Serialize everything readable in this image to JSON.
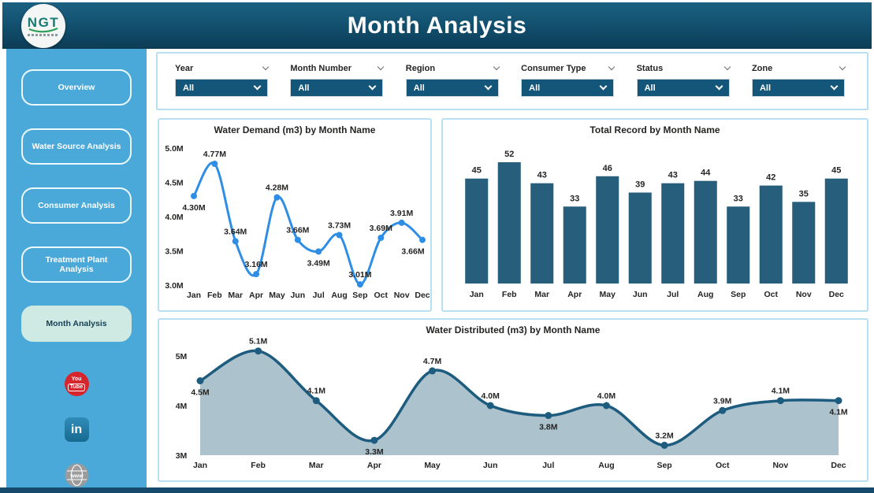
{
  "theme": {
    "header_gradient_top": "#1C6182",
    "header_gradient_bottom": "#0D3C55",
    "sidebar_bg": "#4BA9DA",
    "active_nav_bg": "#CFEAE3",
    "dropdown_bg": "#14567A",
    "panel_border": "#B9E0F2",
    "bottom_bar": "#164A6D"
  },
  "header": {
    "title": "Month Analysis",
    "logo_text": "NGT"
  },
  "sidebar": {
    "items": [
      {
        "label": "Overview",
        "active": false
      },
      {
        "label": "Water Source Analysis",
        "active": false
      },
      {
        "label": "Consumer Analysis",
        "active": false
      },
      {
        "label": "Treatment Plant Analysis",
        "active": false
      },
      {
        "label": "Month Analysis",
        "active": true
      }
    ],
    "social": {
      "youtube_top": "You",
      "youtube_bottom": "Tube",
      "linkedin": "in",
      "website": "www"
    }
  },
  "filters": [
    {
      "label": "Year",
      "value": "All"
    },
    {
      "label": "Month Number",
      "value": "All"
    },
    {
      "label": "Region",
      "value": "All"
    },
    {
      "label": "Consumer Type",
      "value": "All"
    },
    {
      "label": "Status",
      "value": "All"
    },
    {
      "label": "Zone",
      "value": "All"
    }
  ],
  "chart_data": [
    {
      "type": "line",
      "title": "Water Demand (m3) by Month Name",
      "categories": [
        "Jan",
        "Feb",
        "Mar",
        "Apr",
        "May",
        "Jun",
        "Jul",
        "Aug",
        "Sep",
        "Oct",
        "Nov",
        "Dec"
      ],
      "values": [
        4.3,
        4.77,
        3.64,
        3.16,
        4.28,
        3.66,
        3.49,
        3.73,
        3.01,
        3.69,
        3.91,
        3.66
      ],
      "labels": [
        "4.30M",
        "4.77M",
        "3.64M",
        "3.16M",
        "4.28M",
        "3.66M",
        "3.49M",
        "3.73M",
        "3.01M",
        "3.69M",
        "3.91M",
        "3.66M"
      ],
      "ylim": [
        3.0,
        5.0
      ],
      "yticks": [
        "3.0M",
        "3.5M",
        "4.0M",
        "4.5M",
        "5.0M"
      ],
      "label_pos": [
        "below",
        "above",
        "above",
        "above",
        "above",
        "above",
        "below",
        "above",
        "above",
        "above",
        "above",
        "below"
      ],
      "color": "#2E8EE5",
      "grid": false,
      "legend": false
    },
    {
      "type": "bar",
      "title": "Total Record by Month Name",
      "categories": [
        "Jan",
        "Feb",
        "Mar",
        "Apr",
        "May",
        "Jun",
        "Jul",
        "Aug",
        "Sep",
        "Oct",
        "Nov",
        "Dec"
      ],
      "values": [
        45,
        52,
        43,
        33,
        46,
        39,
        43,
        44,
        33,
        42,
        35,
        45
      ],
      "color": "#275E7C",
      "grid": false,
      "legend": false
    },
    {
      "type": "area",
      "title": "Water Distributed (m3) by Month Name",
      "categories": [
        "Jan",
        "Feb",
        "Mar",
        "Apr",
        "May",
        "Jun",
        "Jul",
        "Aug",
        "Sep",
        "Oct",
        "Nov",
        "Dec"
      ],
      "values": [
        4.5,
        5.1,
        4.1,
        3.3,
        4.7,
        4.0,
        3.8,
        4.0,
        3.2,
        3.9,
        4.1,
        4.1
      ],
      "labels": [
        "4.5M",
        "5.1M",
        "4.1M",
        "3.3M",
        "4.7M",
        "4.0M",
        "3.8M",
        "4.0M",
        "3.2M",
        "3.9M",
        "4.1M",
        "4.1M"
      ],
      "ylim": [
        3,
        5
      ],
      "yticks": [
        "3M",
        "4M",
        "5M"
      ],
      "label_pos": [
        "below",
        "above",
        "above",
        "below",
        "above",
        "above",
        "below",
        "above",
        "above",
        "above",
        "above",
        "below"
      ],
      "line_color": "#1D5C7E",
      "fill_color": "#A5BDC9",
      "grid": false,
      "legend": false
    }
  ]
}
